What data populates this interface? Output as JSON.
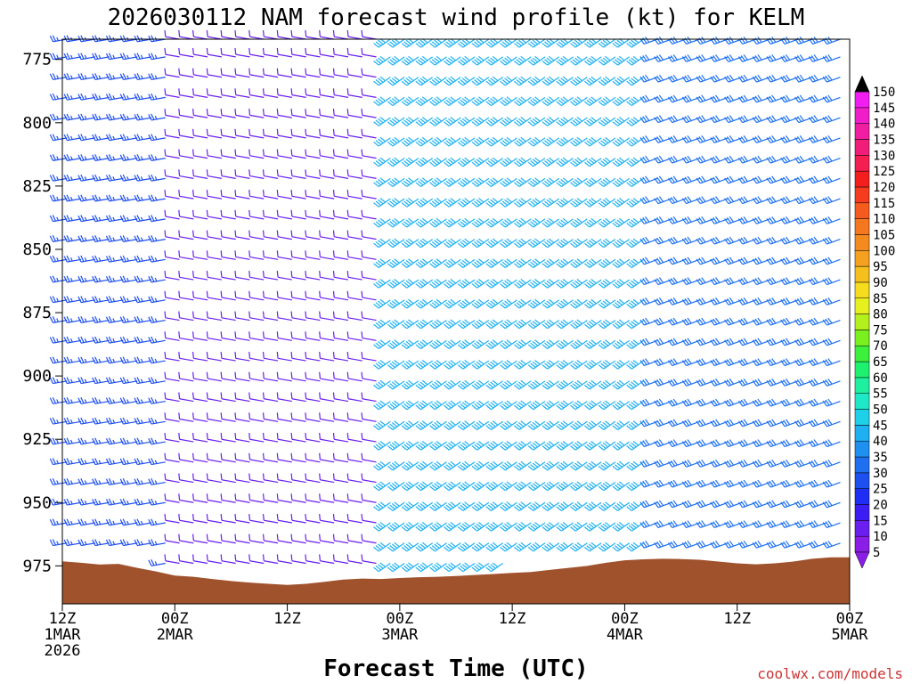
{
  "chart_data": {
    "type": "wind-barb-profile",
    "title": "2026030112 NAM forecast wind profile (kt) for KELM",
    "xlabel": "Forecast Time (UTC)",
    "credit": "coolwx.com/models",
    "x_ticks": [
      {
        "hour": 0,
        "lines": [
          "12Z",
          "1MAR",
          "2026"
        ]
      },
      {
        "hour": 12,
        "lines": [
          "00Z",
          "2MAR"
        ]
      },
      {
        "hour": 24,
        "lines": [
          "12Z"
        ]
      },
      {
        "hour": 36,
        "lines": [
          "00Z",
          "3MAR"
        ]
      },
      {
        "hour": 48,
        "lines": [
          "12Z"
        ]
      },
      {
        "hour": 60,
        "lines": [
          "00Z",
          "4MAR"
        ]
      },
      {
        "hour": 72,
        "lines": [
          "12Z"
        ]
      },
      {
        "hour": 84,
        "lines": [
          "00Z",
          "5MAR"
        ]
      }
    ],
    "x_range_hours": [
      0,
      84
    ],
    "y_ticks": [
      775,
      800,
      825,
      850,
      875,
      900,
      925,
      950,
      975
    ],
    "y_range_hPa": [
      767,
      990
    ],
    "colorbar_levels": [
      5,
      10,
      15,
      20,
      25,
      30,
      35,
      40,
      45,
      50,
      55,
      60,
      65,
      70,
      75,
      80,
      85,
      90,
      95,
      100,
      105,
      110,
      115,
      120,
      125,
      130,
      135,
      140,
      145,
      150
    ],
    "colorbar_colors": [
      "#8a1ee6",
      "#6a1ef0",
      "#3c1ef5",
      "#1e2ef5",
      "#1e50f0",
      "#1e70f0",
      "#1e90f0",
      "#1eb0f0",
      "#1ed0e8",
      "#1ee8c8",
      "#1ef0a0",
      "#1ef070",
      "#3cf03c",
      "#7af01e",
      "#b4f01e",
      "#e6f01e",
      "#f5dc1e",
      "#f5c01e",
      "#f5a01e",
      "#f58a1e",
      "#f5781e",
      "#f55a1e",
      "#f53c1e",
      "#f51e1e",
      "#f51e50",
      "#f01e78",
      "#f01ea0",
      "#f01ec8",
      "#f01ef0"
    ],
    "colorbar_top_arrow_color": "#000000",
    "colorbar_bottom_arrow_color": "#8a1ee6",
    "terrain_color": "#a0522d",
    "surface_pressure_hPa": [
      {
        "hour": 0,
        "p": 973.2
      },
      {
        "hour": 2,
        "p": 973.8
      },
      {
        "hour": 4,
        "p": 974.5
      },
      {
        "hour": 6,
        "p": 974.2
      },
      {
        "hour": 8,
        "p": 975.8
      },
      {
        "hour": 10,
        "p": 977.2
      },
      {
        "hour": 12,
        "p": 978.8
      },
      {
        "hour": 14,
        "p": 979.3
      },
      {
        "hour": 16,
        "p": 980.2
      },
      {
        "hour": 18,
        "p": 981.0
      },
      {
        "hour": 20,
        "p": 981.6
      },
      {
        "hour": 22,
        "p": 982.1
      },
      {
        "hour": 24,
        "p": 982.5
      },
      {
        "hour": 26,
        "p": 982.1
      },
      {
        "hour": 28,
        "p": 981.3
      },
      {
        "hour": 30,
        "p": 980.4
      },
      {
        "hour": 32,
        "p": 980.0
      },
      {
        "hour": 34,
        "p": 980.2
      },
      {
        "hour": 36,
        "p": 979.8
      },
      {
        "hour": 38,
        "p": 979.5
      },
      {
        "hour": 40,
        "p": 979.3
      },
      {
        "hour": 42,
        "p": 979.0
      },
      {
        "hour": 44,
        "p": 978.6
      },
      {
        "hour": 46,
        "p": 978.2
      },
      {
        "hour": 48,
        "p": 977.8
      },
      {
        "hour": 50,
        "p": 977.4
      },
      {
        "hour": 52,
        "p": 976.6
      },
      {
        "hour": 54,
        "p": 975.8
      },
      {
        "hour": 56,
        "p": 975.0
      },
      {
        "hour": 58,
        "p": 973.8
      },
      {
        "hour": 60,
        "p": 972.8
      },
      {
        "hour": 62,
        "p": 972.4
      },
      {
        "hour": 64,
        "p": 972.2
      },
      {
        "hour": 66,
        "p": 972.3
      },
      {
        "hour": 68,
        "p": 972.6
      },
      {
        "hour": 70,
        "p": 973.3
      },
      {
        "hour": 72,
        "p": 974.0
      },
      {
        "hour": 74,
        "p": 974.4
      },
      {
        "hour": 76,
        "p": 974.0
      },
      {
        "hour": 78,
        "p": 973.3
      },
      {
        "hour": 80,
        "p": 972.2
      },
      {
        "hour": 82,
        "p": 971.6
      },
      {
        "hour": 84,
        "p": 971.6
      }
    ],
    "barb_levels_hPa": [
      767,
      774,
      782,
      790,
      798,
      806,
      814,
      822,
      830,
      838,
      846,
      854,
      862,
      870,
      878,
      886,
      894,
      902,
      910,
      918,
      926,
      934,
      942,
      950,
      958,
      966,
      974
    ],
    "barb_hour_step": 1.5,
    "wind_regimes": [
      {
        "hours": [
          0,
          12
        ],
        "dir_deg": 260,
        "speed_kt": 25
      },
      {
        "hours": [
          12,
          34
        ],
        "dir_deg": 280,
        "speed_kt": 12
      },
      {
        "hours": [
          34,
          62
        ],
        "dir_deg": 235,
        "speed_kt": 40
      },
      {
        "hours": [
          62,
          84
        ],
        "dir_deg": 250,
        "speed_kt": 30
      }
    ]
  }
}
